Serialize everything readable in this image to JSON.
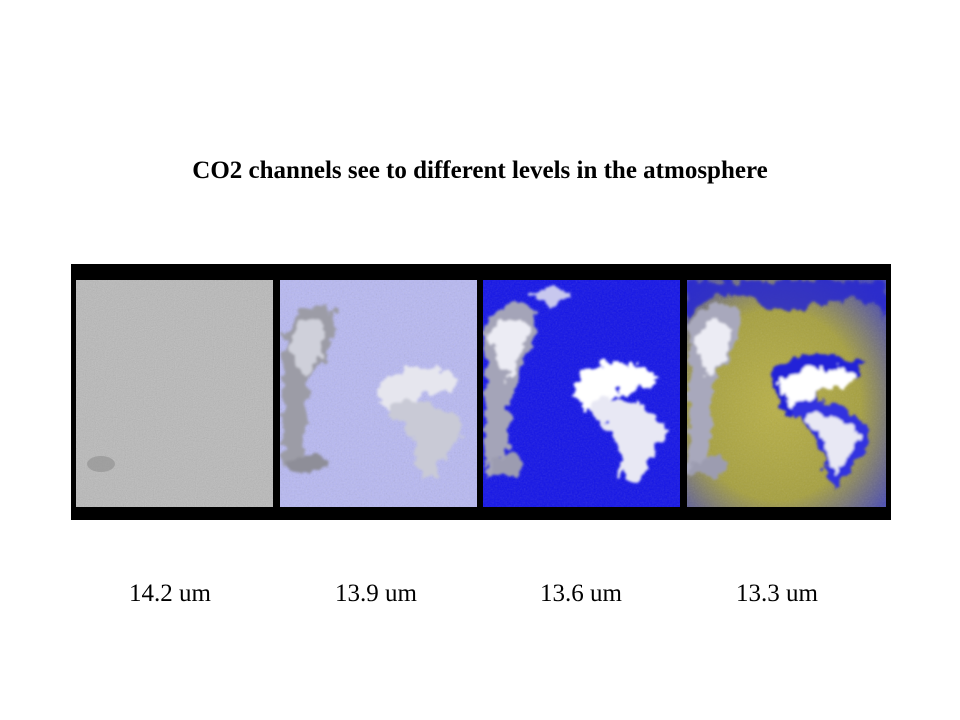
{
  "slide": {
    "title": "CO2 channels see to different levels in the atmosphere",
    "panels": [
      {
        "label": "14.2 um"
      },
      {
        "label": "13.9 um"
      },
      {
        "label": "13.6 um"
      },
      {
        "label": "13.3 um"
      }
    ]
  }
}
